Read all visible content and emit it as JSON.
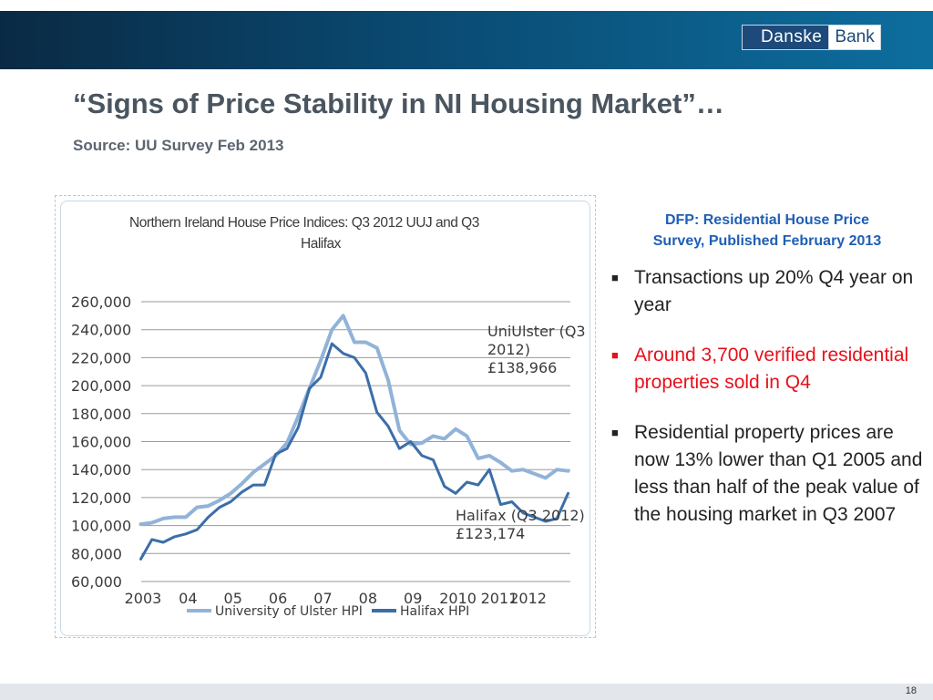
{
  "header": {
    "logo_part1": "Danske",
    "logo_part2": "Bank"
  },
  "slide": {
    "title": "“Signs of Price Stability in NI Housing Market”…",
    "subtitle": "Source: UU Survey Feb 2013",
    "page_number": "18"
  },
  "side_panel": {
    "heading_line1": "DFP: Residential House Price",
    "heading_line2": "Survey, Published February 2013",
    "bullets": [
      "Transactions up 20% Q4 year on year",
      "Around 3,700 verified residential properties sold in Q4",
      "Residential property prices are now 13% lower than Q1 2005 and less than half of the peak value of the housing market in Q3 2007"
    ],
    "colors": {
      "heading": "#1f5fb5",
      "highlight": "#e8101a"
    }
  },
  "chart_data": {
    "type": "line",
    "title_line1": "Northern Ireland House Price Indices: Q3 2012 UUJ and Q3",
    "title_line2": "Halifax",
    "y_ticks": [
      "260,000",
      "240,000",
      "220,000",
      "200,000",
      "180,000",
      "160,000",
      "140,000",
      "120,000",
      "100,000",
      "80,000",
      "60,000"
    ],
    "ylim": [
      60000,
      260000
    ],
    "x_ticks": [
      {
        "label": "2003",
        "x": 2003.0
      },
      {
        "label": "04",
        "x": 2004.0
      },
      {
        "label": "05",
        "x": 2005.0
      },
      {
        "label": "06",
        "x": 2006.0
      },
      {
        "label": "07",
        "x": 2007.0
      },
      {
        "label": "08",
        "x": 2008.0
      },
      {
        "label": "09",
        "x": 2009.0
      },
      {
        "label": "2010",
        "x": 2010.0
      },
      {
        "label": "2011",
        "x": 2010.92
      },
      {
        "label": "2012",
        "x": 2011.56
      }
    ],
    "grid": true,
    "legend_position": "bottom",
    "series": [
      {
        "name": "University of Ulster HPI",
        "color": "#92b3d8",
        "x": [
          2002.95,
          2003.2,
          2003.45,
          2003.7,
          2003.95,
          2004.2,
          2004.45,
          2004.7,
          2004.95,
          2005.2,
          2005.45,
          2005.7,
          2005.95,
          2006.2,
          2006.45,
          2006.7,
          2006.95,
          2007.2,
          2007.45,
          2007.7,
          2007.95,
          2008.2,
          2008.45,
          2008.7,
          2008.95,
          2009.2,
          2009.45,
          2009.7,
          2009.95,
          2010.2,
          2010.45,
          2010.7,
          2010.95,
          2011.2,
          2011.45,
          2011.7,
          2011.95,
          2012.2,
          2012.45
        ],
        "y": [
          101000,
          102000,
          105000,
          106000,
          106000,
          113000,
          114000,
          118000,
          123000,
          130000,
          138000,
          144000,
          150000,
          159000,
          178000,
          198000,
          218000,
          240000,
          250000,
          231000,
          231000,
          227000,
          204000,
          168000,
          158000,
          159000,
          164000,
          162000,
          169000,
          164000,
          148000,
          150000,
          145000,
          139000,
          140000,
          137000,
          134000,
          140000,
          139000
        ]
      },
      {
        "name": "Halifax HPI",
        "color": "#3b6ea9",
        "x": [
          2002.95,
          2003.2,
          2003.45,
          2003.7,
          2003.95,
          2004.2,
          2004.45,
          2004.7,
          2004.95,
          2005.2,
          2005.45,
          2005.7,
          2005.95,
          2006.2,
          2006.45,
          2006.7,
          2006.95,
          2007.2,
          2007.45,
          2007.7,
          2007.95,
          2008.2,
          2008.45,
          2008.7,
          2008.95,
          2009.2,
          2009.45,
          2009.7,
          2009.95,
          2010.2,
          2010.45,
          2010.7,
          2010.95,
          2011.2,
          2011.45,
          2011.7,
          2011.95,
          2012.2,
          2012.45
        ],
        "y": [
          76000,
          90000,
          88000,
          92000,
          94000,
          97000,
          106000,
          113000,
          117000,
          124000,
          129000,
          129000,
          151000,
          155000,
          170000,
          198000,
          206000,
          230000,
          223000,
          220000,
          209000,
          181000,
          171000,
          155000,
          160000,
          150000,
          147000,
          128000,
          123000,
          131000,
          129000,
          140000,
          115000,
          117000,
          109000,
          106000,
          103000,
          105000,
          123000
        ]
      }
    ],
    "annotations": [
      {
        "lines": [
          "UniUlster (Q3",
          "2012)",
          "£138,966"
        ]
      },
      {
        "lines": [
          "Halifax (Q3 2012)",
          "£123,174"
        ]
      }
    ]
  }
}
